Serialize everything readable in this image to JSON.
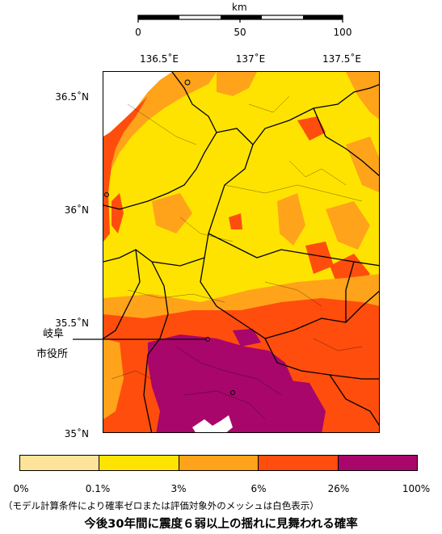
{
  "scale_bar": {
    "unit": "km",
    "labels": [
      "0",
      "50",
      "100"
    ]
  },
  "lon_axis": {
    "labels": [
      "136.5˚E",
      "137˚E",
      "137.5˚E"
    ]
  },
  "lat_axis": {
    "labels": [
      "36.5˚N",
      "36˚N",
      "35.5˚N",
      "35˚N"
    ]
  },
  "city_marker": {
    "label_line1": "岐阜",
    "label_line2": "市役所"
  },
  "legend": {
    "colors": [
      "#fee49b",
      "#ffe300",
      "#ffa31a",
      "#ff4d0d",
      "#a8066b"
    ],
    "tick_labels": [
      "0%",
      "0.1%",
      "3%",
      "6%",
      "26%",
      "100%"
    ]
  },
  "footer": {
    "note": "（モデル計算条件により確率ゼロまたは評価対象外のメッシュは白色表示）",
    "title": "今後30年間に震度６弱以上の揺れに見舞われる確率"
  },
  "map_colors": {
    "pale": "#fee49b",
    "yellow": "#ffe300",
    "orange": "#ffa31a",
    "red": "#ff4d0d",
    "purple": "#a8066b",
    "boundary": "#000000"
  }
}
